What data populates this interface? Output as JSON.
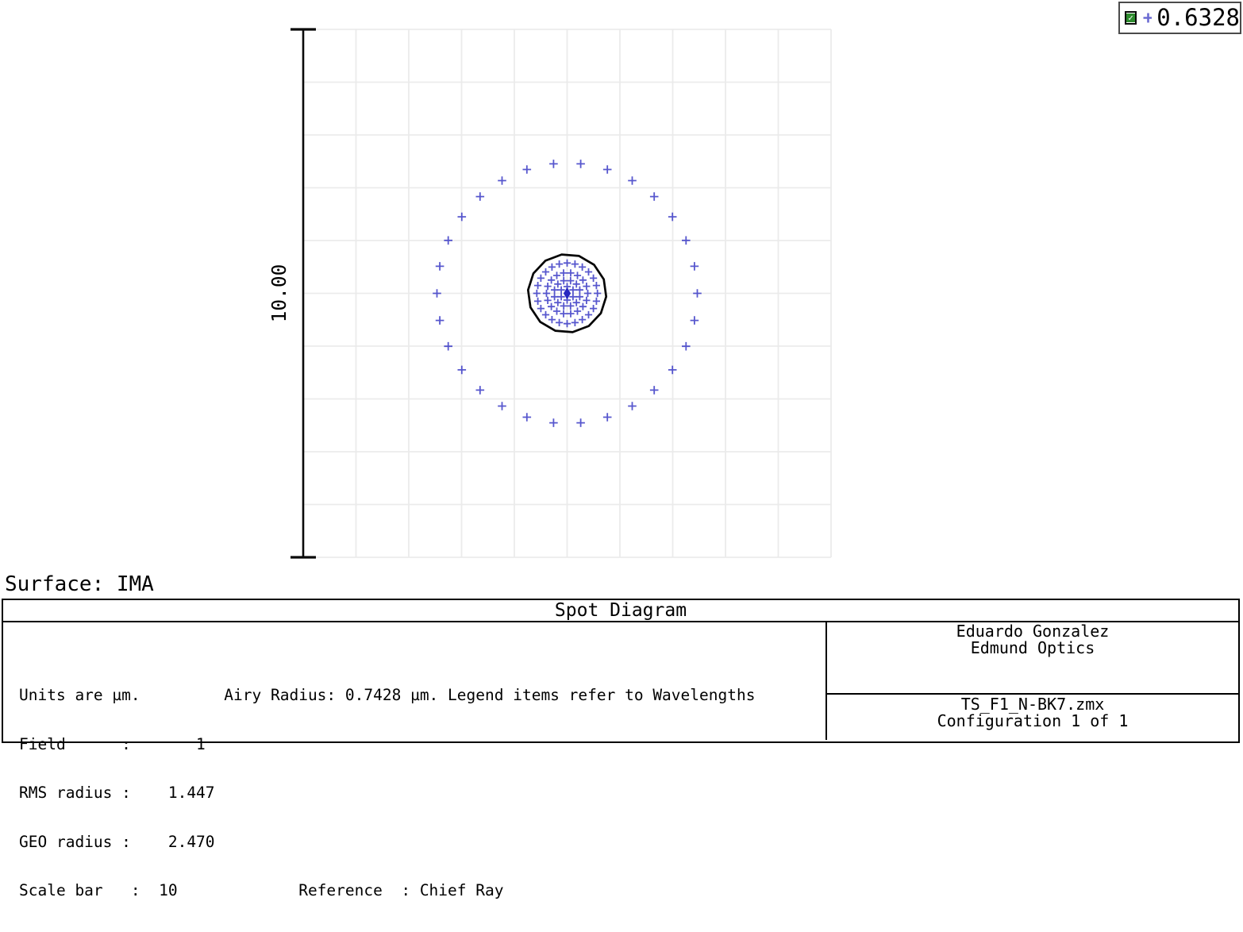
{
  "legend": {
    "checkbox_state": "checked",
    "check_glyph": "✓",
    "value": "0.6328",
    "marker_color": "#6b6bd2"
  },
  "plot": {
    "surface_label": "Surface: IMA",
    "scale_bar_label": "10.00",
    "marker_color": "#3a3ac6",
    "chief_ray_color": "#2828c0",
    "airy_color": "#050505",
    "grid_color": "#ebebeb",
    "scale_bar_color": "#0a0a0a"
  },
  "chart_data": {
    "type": "scatter",
    "title": "Spot Diagram",
    "units": "µm",
    "field": "1",
    "rms_radius_um": 1.447,
    "geo_radius_um": 2.47,
    "airy_radius_um": 0.7428,
    "scale_bar_um": 10,
    "reference": "Chief Ray",
    "wavelengths_um": [
      "0.6328"
    ],
    "grid": {
      "cols": 10,
      "rows": 10,
      "cell_um": 1.0,
      "grid_on": true
    },
    "spot_rings": [
      {
        "rays": 30,
        "radius_um": 2.466,
        "start_deg": 96,
        "marker_half_px": 5.3
      },
      {
        "rays": 24,
        "radius_um": 0.574,
        "start_deg": 90,
        "marker_half_px": 4.6
      },
      {
        "rays": 18,
        "radius_um": 0.391,
        "start_deg": 100,
        "marker_half_px": 4.6
      },
      {
        "rays": 12,
        "radius_um": 0.248,
        "start_deg": 75,
        "marker_half_px": 4.6
      },
      {
        "rays": 6,
        "radius_um": 0.128,
        "start_deg": 90,
        "marker_half_px": 4.6
      },
      {
        "rays": 1,
        "radius_um": 0,
        "start_deg": 0,
        "marker_half_px": 4.6
      }
    ],
    "chief_ray_blob": {
      "half_width_um": 0.053,
      "half_height_um": 0.098
    },
    "legend_note": "Legend items refer to Wavelengths"
  },
  "footer": {
    "title": "Spot Diagram",
    "info_lines": [
      "Units are µm.         Airy Radius: 0.7428 µm. Legend items refer to Wavelengths",
      "Field      :       1",
      "RMS radius :    1.447",
      "GEO radius :    2.470",
      "Scale bar   :  10             Reference  : Chief Ray"
    ],
    "author_lines": [
      "Eduardo Gonzalez",
      "Edmund Optics"
    ],
    "config_lines": [
      "TS_F1_N-BK7.zmx",
      "Configuration 1 of 1"
    ]
  }
}
